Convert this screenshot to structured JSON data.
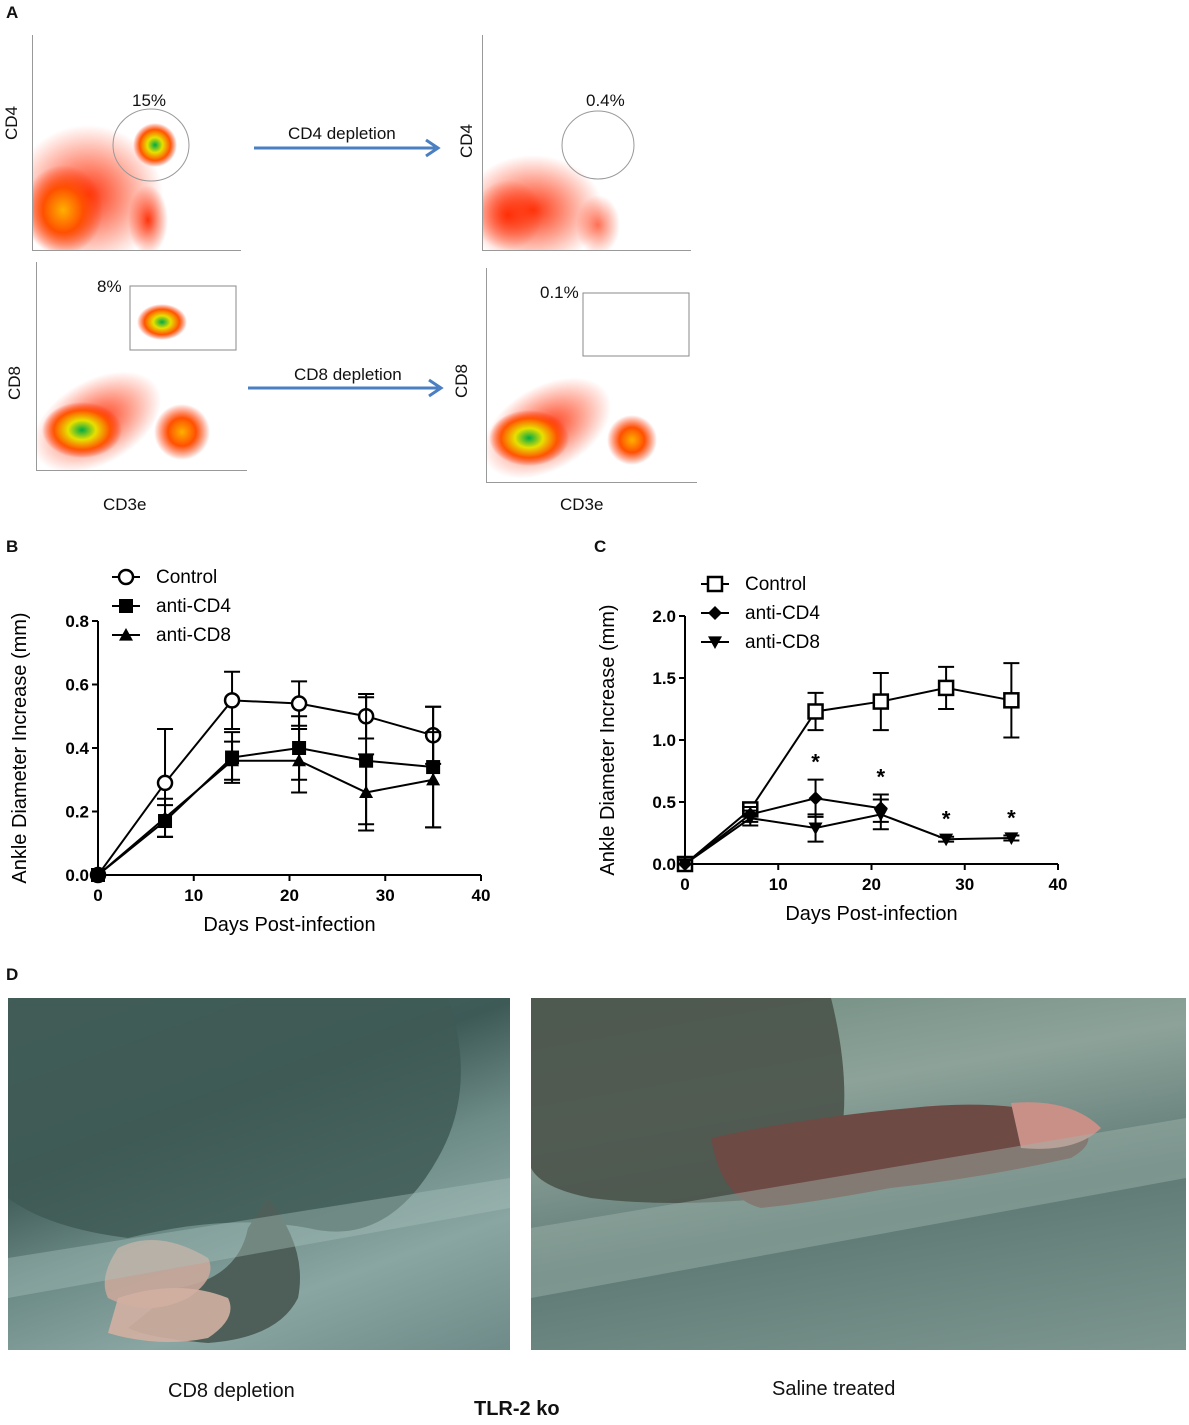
{
  "panels": {
    "A": "A",
    "B": "B",
    "C": "C",
    "D": "D"
  },
  "flow": {
    "top_left_pct": "15%",
    "top_right_pct": "0.4%",
    "bottom_left_pct": "8%",
    "bottom_right_pct": "0.1%",
    "cd4_label": "CD4",
    "cd8_label": "CD8",
    "cd3e_label": "CD3e",
    "arrow_cd4": "CD4 depletion",
    "arrow_cd8": "CD8 depletion",
    "arrow_color": "#4a7fc1"
  },
  "chart_data": [
    {
      "id": "B",
      "type": "line",
      "xlabel": "Days Post-infection",
      "ylabel": "Ankle Diameter Increase (mm)",
      "xlim": [
        0,
        40
      ],
      "ylim": [
        0,
        0.8
      ],
      "xticks": [
        "0",
        "10",
        "20",
        "30",
        "40"
      ],
      "yticks": [
        "0.0",
        "0.2",
        "0.4",
        "0.6",
        "0.8"
      ],
      "legend_position": "top-left",
      "x": [
        0,
        7,
        14,
        21,
        28,
        35
      ],
      "series": [
        {
          "name": "Control",
          "marker": "open-circle",
          "values": [
            0,
            0.29,
            0.55,
            0.54,
            0.5,
            0.44
          ],
          "errors": [
            0,
            0.17,
            0.09,
            0.07,
            0.07,
            0.09
          ]
        },
        {
          "name": "anti-CD4",
          "marker": "filled-square",
          "values": [
            0,
            0.17,
            0.37,
            0.4,
            0.36,
            0.34
          ],
          "errors": [
            0,
            0.05,
            0.08,
            0.1,
            0.2,
            0.19
          ]
        },
        {
          "name": "anti-CD8",
          "marker": "filled-triangle-up",
          "values": [
            0,
            0.18,
            0.36,
            0.36,
            0.26,
            0.3
          ],
          "errors": [
            0,
            0.06,
            0.06,
            0.1,
            0.12,
            0.15
          ]
        }
      ]
    },
    {
      "id": "C",
      "type": "line",
      "xlabel": "Days Post-infection",
      "ylabel": "Ankle Diameter Increase (mm)",
      "xlim": [
        0,
        40
      ],
      "ylim": [
        0,
        2.0
      ],
      "xticks": [
        "0",
        "10",
        "20",
        "30",
        "40"
      ],
      "yticks": [
        "0.0",
        "0.5",
        "1.0",
        "1.5",
        "2.0"
      ],
      "legend_position": "top-left",
      "x": [
        0,
        7,
        14,
        21,
        28,
        35
      ],
      "significance": [
        {
          "x": 14,
          "label": "*"
        },
        {
          "x": 21,
          "label": "*"
        },
        {
          "x": 28,
          "label": "*"
        },
        {
          "x": 35,
          "label": "*"
        }
      ],
      "series": [
        {
          "name": "Control",
          "marker": "open-square",
          "values": [
            0,
            0.44,
            1.23,
            1.31,
            1.42,
            1.32
          ],
          "errors": [
            0,
            0.05,
            0.15,
            0.23,
            0.17,
            0.3
          ]
        },
        {
          "name": "anti-CD4",
          "marker": "filled-diamond",
          "values": [
            0,
            0.4,
            0.53,
            0.45,
            null,
            null
          ],
          "errors": [
            0,
            0.06,
            0.15,
            0.11,
            0,
            0
          ]
        },
        {
          "name": "anti-CD8",
          "marker": "filled-triangle-down",
          "values": [
            0,
            0.37,
            0.29,
            0.4,
            0.2,
            0.21
          ],
          "errors": [
            0,
            0.06,
            0.11,
            0.12,
            0.02,
            0.02
          ]
        }
      ]
    }
  ],
  "photos": {
    "left_caption": "CD8 depletion",
    "right_caption": "Saline treated",
    "bottom_caption": "TLR-2 ko"
  }
}
